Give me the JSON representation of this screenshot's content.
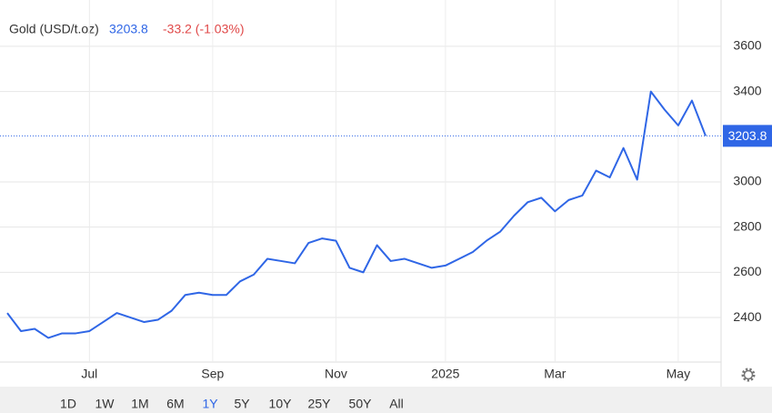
{
  "chart_data": {
    "type": "line",
    "title": "Gold (USD/t.oz)",
    "last_price": 3203.8,
    "change": "-33.2 (-1.03%)",
    "categories": [
      null,
      null,
      null,
      null,
      null,
      null,
      "Jul",
      null,
      null,
      null,
      null,
      null,
      null,
      null,
      null,
      "Sep",
      null,
      null,
      null,
      null,
      null,
      null,
      null,
      null,
      "Nov",
      null,
      null,
      null,
      null,
      null,
      null,
      null,
      "2025",
      null,
      null,
      null,
      null,
      null,
      null,
      null,
      "Mar",
      null,
      null,
      null,
      null,
      null,
      null,
      null,
      null,
      "May",
      null,
      null
    ],
    "series": [
      {
        "name": "Gold",
        "color": "#2f66e6",
        "values": [
          2420,
          2340,
          2350,
          2310,
          2330,
          2330,
          2340,
          2380,
          2420,
          2400,
          2380,
          2390,
          2430,
          2500,
          2510,
          2500,
          2500,
          2560,
          2590,
          2660,
          2650,
          2640,
          2730,
          2750,
          2740,
          2620,
          2600,
          2720,
          2650,
          2660,
          2640,
          2620,
          2630,
          2660,
          2690,
          2740,
          2780,
          2850,
          2910,
          2930,
          2870,
          2920,
          2940,
          3050,
          3020,
          3150,
          3010,
          3400,
          3320,
          3250,
          3360,
          3203.8
        ]
      }
    ],
    "ylim": [
      2203,
      3805
    ],
    "yticks": [
      2400,
      2600,
      2800,
      3000,
      3400,
      3600
    ],
    "grid": true,
    "ranges": [
      "1D",
      "1W",
      "1M",
      "6M",
      "1Y",
      "5Y",
      "10Y",
      "25Y",
      "50Y",
      "All"
    ],
    "selected_range": "1Y"
  }
}
